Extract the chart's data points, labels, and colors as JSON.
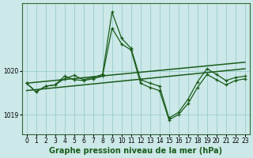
{
  "background_color": "#cce8e8",
  "plot_bg_color": "#cce8e8",
  "grid_color": "#99cccc",
  "line_color": "#1a5c1a",
  "title": "Graphe pression niveau de la mer (hPa)",
  "title_fontsize": 7,
  "xlim": [
    -0.5,
    23.5
  ],
  "ylim": [
    1018.55,
    1021.55
  ],
  "yticks": [
    1019,
    1020
  ],
  "xticks": [
    0,
    1,
    2,
    3,
    4,
    5,
    6,
    7,
    8,
    9,
    10,
    11,
    12,
    13,
    14,
    15,
    16,
    17,
    18,
    19,
    20,
    21,
    22,
    23
  ],
  "trend1_x": [
    0,
    23
  ],
  "trend1_y": [
    1019.72,
    1020.2
  ],
  "trend2_x": [
    0,
    23
  ],
  "trend2_y": [
    1019.55,
    1020.05
  ],
  "series1_x": [
    0,
    1,
    2,
    3,
    4,
    5,
    6,
    7,
    8,
    9,
    10,
    11,
    12,
    13,
    14,
    15,
    16,
    17,
    18,
    19,
    20,
    21,
    22,
    23
  ],
  "series1_y": [
    1019.72,
    1019.52,
    1019.65,
    1019.68,
    1019.82,
    1019.9,
    1019.8,
    1019.85,
    1019.92,
    1021.35,
    1020.75,
    1020.52,
    1019.8,
    1019.72,
    1019.65,
    1018.92,
    1019.05,
    1019.35,
    1019.75,
    1020.05,
    1019.92,
    1019.78,
    1019.85,
    1019.88
  ],
  "series2_x": [
    0,
    1,
    2,
    3,
    4,
    5,
    6,
    7,
    8,
    9,
    10,
    11,
    12,
    13,
    14,
    15,
    16,
    17,
    18,
    19,
    20,
    21,
    22,
    23
  ],
  "series2_y": [
    1019.72,
    1019.52,
    1019.65,
    1019.68,
    1019.88,
    1019.8,
    1019.78,
    1019.82,
    1019.88,
    1020.98,
    1020.62,
    1020.48,
    1019.72,
    1019.62,
    1019.55,
    1018.88,
    1019.0,
    1019.25,
    1019.62,
    1019.92,
    1019.8,
    1019.68,
    1019.78,
    1019.82
  ]
}
